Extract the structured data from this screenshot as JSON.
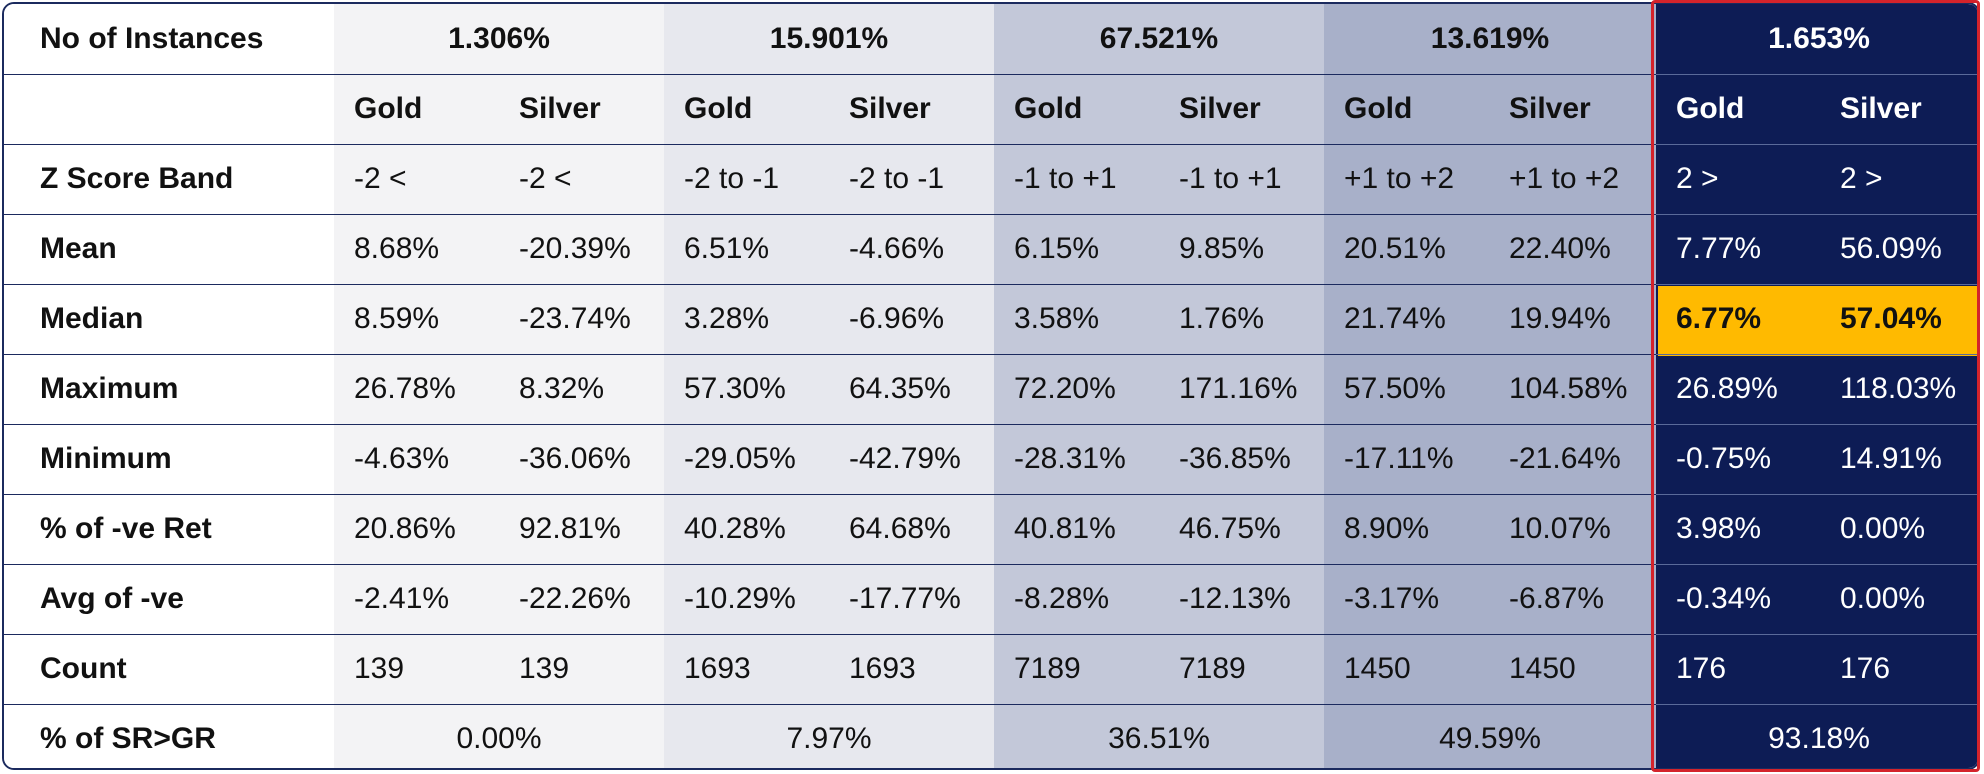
{
  "table": {
    "header_label": "No of Instances",
    "instances": [
      "1.306%",
      "15.901%",
      "67.521%",
      "13.619%",
      "1.653%"
    ],
    "sub_header": [
      "Gold",
      "Silver",
      "Gold",
      "Silver",
      "Gold",
      "Silver",
      "Gold",
      "Silver",
      "Gold",
      "Silver"
    ],
    "rows": [
      {
        "label": "Z  Score Band",
        "values": [
          "-2 <",
          "-2 <",
          "-2 to -1",
          "-2 to -1",
          "-1 to +1",
          "-1 to +1",
          "+1 to +2",
          "+1 to +2",
          "2 >",
          "2 >"
        ]
      },
      {
        "label": "Mean",
        "values": [
          "8.68%",
          "-20.39%",
          "6.51%",
          "-4.66%",
          "6.15%",
          "9.85%",
          "20.51%",
          "22.40%",
          "7.77%",
          "56.09%"
        ]
      },
      {
        "label": "Median",
        "values": [
          "8.59%",
          "-23.74%",
          "3.28%",
          "-6.96%",
          "3.58%",
          "1.76%",
          "21.74%",
          "19.94%",
          "6.77%",
          "57.04%"
        ]
      },
      {
        "label": "Maximum",
        "values": [
          "26.78%",
          "8.32%",
          "57.30%",
          "64.35%",
          "72.20%",
          "171.16%",
          "57.50%",
          "104.58%",
          "26.89%",
          "118.03%"
        ]
      },
      {
        "label": "Minimum",
        "values": [
          "-4.63%",
          "-36.06%",
          "-29.05%",
          "-42.79%",
          "-28.31%",
          "-36.85%",
          "-17.11%",
          "-21.64%",
          "-0.75%",
          "14.91%"
        ]
      },
      {
        "label": "% of -ve Ret",
        "values": [
          "20.86%",
          "92.81%",
          "40.28%",
          "64.68%",
          "40.81%",
          "46.75%",
          "8.90%",
          "10.07%",
          "3.98%",
          "0.00%"
        ]
      },
      {
        "label": "Avg of -ve",
        "values": [
          "-2.41%",
          "-22.26%",
          "-10.29%",
          "-17.77%",
          "-8.28%",
          "-12.13%",
          "-3.17%",
          "-6.87%",
          "-0.34%",
          "0.00%"
        ]
      },
      {
        "label": "Count",
        "values": [
          "139",
          "139",
          "1693",
          "1693",
          "7189",
          "7189",
          "1450",
          "1450",
          "176",
          "176"
        ]
      }
    ],
    "footer": {
      "label": "% of SR>GR",
      "values": [
        "0.00%",
        "7.97%",
        "36.51%",
        "49.59%",
        "93.18%"
      ]
    }
  },
  "colors": {
    "highlight": "#ffba00",
    "outline": "#d4232b",
    "dark_band": "#0d1c55"
  }
}
